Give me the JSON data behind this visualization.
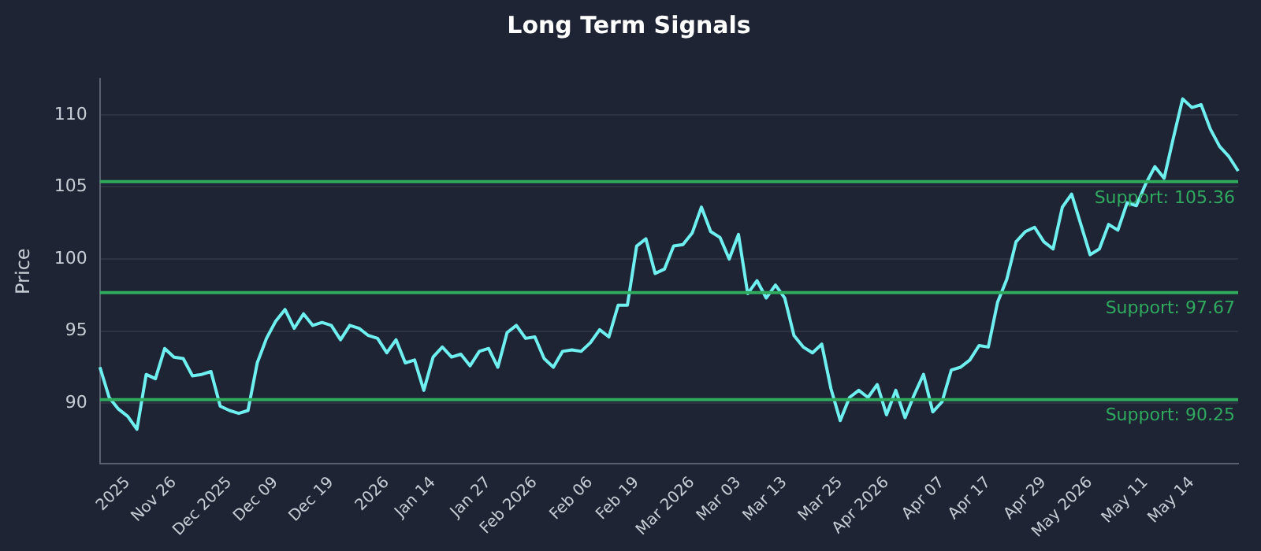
{
  "chart_data": {
    "type": "line",
    "title": "Long Term Signals",
    "ylabel": "Price",
    "categories": [
      null,
      null,
      null,
      "2025",
      null,
      null,
      null,
      null,
      "Nov 26",
      null,
      null,
      null,
      null,
      null,
      "Dec 2025",
      null,
      null,
      null,
      null,
      "Dec 09",
      null,
      null,
      null,
      null,
      null,
      "Dec 19",
      null,
      null,
      null,
      null,
      null,
      "2026",
      null,
      null,
      null,
      null,
      "Jan 14",
      null,
      null,
      null,
      null,
      null,
      "Jan 27",
      null,
      null,
      null,
      null,
      "Feb 2026",
      null,
      null,
      null,
      null,
      null,
      "Feb 06",
      null,
      null,
      null,
      null,
      "Feb 19",
      null,
      null,
      null,
      null,
      null,
      "Mar 2026",
      null,
      null,
      null,
      null,
      "Mar 03",
      null,
      null,
      null,
      null,
      "Mar 13",
      null,
      null,
      null,
      null,
      null,
      "Mar 25",
      null,
      null,
      null,
      null,
      "Apr 2026",
      null,
      null,
      null,
      null,
      null,
      "Apr 07",
      null,
      null,
      null,
      null,
      "Apr 17",
      null,
      null,
      null,
      null,
      null,
      "Apr 29",
      null,
      null,
      null,
      null,
      "May 2026",
      null,
      null,
      null,
      null,
      null,
      "May 11",
      null,
      null,
      null,
      null,
      "May 14",
      null,
      null,
      null,
      null,
      null
    ],
    "values": [
      92.5,
      90.4,
      89.6,
      89.1,
      88.2,
      92.0,
      91.7,
      93.8,
      93.2,
      93.1,
      91.9,
      92.0,
      92.2,
      89.8,
      89.5,
      89.3,
      89.5,
      92.8,
      94.5,
      95.7,
      96.5,
      95.2,
      96.2,
      95.4,
      95.6,
      95.4,
      94.4,
      95.4,
      95.2,
      94.7,
      94.5,
      93.5,
      94.4,
      92.8,
      93.0,
      90.9,
      93.2,
      93.9,
      93.2,
      93.4,
      92.6,
      93.6,
      93.8,
      92.5,
      94.9,
      95.4,
      94.5,
      94.6,
      93.1,
      92.5,
      93.6,
      93.7,
      93.6,
      94.2,
      95.1,
      94.6,
      96.8,
      96.8,
      100.9,
      101.4,
      99.0,
      99.3,
      100.9,
      101.0,
      101.8,
      103.6,
      101.9,
      101.5,
      100.0,
      101.7,
      97.6,
      98.5,
      97.3,
      98.2,
      97.3,
      94.7,
      93.9,
      93.5,
      94.1,
      91.0,
      88.8,
      90.4,
      90.9,
      90.4,
      91.3,
      89.2,
      90.9,
      89.0,
      90.6,
      92.0,
      89.4,
      90.1,
      92.3,
      92.5,
      93.0,
      94.0,
      93.9,
      97.0,
      98.6,
      101.2,
      101.9,
      102.2,
      101.2,
      100.7,
      103.6,
      104.5,
      102.4,
      100.3,
      100.7,
      102.4,
      102.0,
      103.9,
      103.7,
      105.2,
      106.4,
      105.6,
      108.4,
      111.1,
      110.5,
      110.7,
      109.0,
      107.8,
      107.1,
      106.1
    ],
    "color": "#6ff0f0",
    "ylim": [
      85.8,
      112.5
    ],
    "yticks": [
      90,
      95,
      100,
      105,
      110
    ],
    "grid": "y",
    "ref_lines": [
      {
        "axis": "y",
        "value": 105.36,
        "label": "Support: 105.36",
        "color": "#2faa5f"
      },
      {
        "axis": "y",
        "value": 97.67,
        "label": "Support: 97.67",
        "color": "#2faa5f"
      },
      {
        "axis": "y",
        "value": 90.25,
        "label": "Support: 90.25",
        "color": "#2faa5f"
      }
    ]
  }
}
